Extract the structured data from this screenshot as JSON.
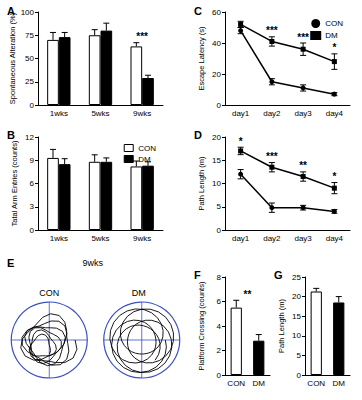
{
  "chart_data": [
    {
      "type": "bar",
      "title": "A",
      "y_label": "Spontaneous Alteration (%)",
      "categories": [
        "1wks",
        "5wks",
        "9wks"
      ],
      "series": [
        {
          "name": "CON",
          "color": "#ffffff",
          "values": [
            70,
            75,
            63
          ],
          "errors": [
            8,
            6,
            4
          ]
        },
        {
          "name": "DM",
          "color": "#000000",
          "values": [
            73,
            80,
            29
          ],
          "errors": [
            5,
            8,
            3
          ]
        }
      ],
      "significance": [
        null,
        null,
        "***"
      ],
      "ylim": [
        0,
        100
      ],
      "yticks": [
        0,
        25,
        50,
        75,
        100
      ],
      "grid": false
    },
    {
      "type": "bar",
      "title": "B",
      "y_label": "Tatal Arm Entries (counts)",
      "categories": [
        "1wks",
        "5wks",
        "9wks"
      ],
      "series": [
        {
          "name": "CON",
          "color": "#ffffff",
          "values": [
            9.3,
            8.8,
            8.2
          ],
          "errors": [
            1.1,
            0.9,
            0.7
          ]
        },
        {
          "name": "DM",
          "color": "#000000",
          "values": [
            8.5,
            8.8,
            8.3
          ],
          "errors": [
            0.7,
            0.5,
            0.5
          ]
        }
      ],
      "ylim": [
        0,
        12
      ],
      "yticks": [
        0,
        3,
        6,
        9,
        12
      ],
      "grid": false,
      "legend": "upper right"
    },
    {
      "type": "line",
      "title": "C",
      "y_label": "Escape Latency (s)",
      "categories": [
        "day1",
        "day2",
        "day3",
        "day4"
      ],
      "series": [
        {
          "name": "CON",
          "color": "#000000",
          "marker": "circle",
          "line_style": "solid",
          "values": [
            48,
            15,
            11,
            7
          ],
          "errors": [
            2,
            2,
            2,
            1
          ]
        },
        {
          "name": "DM",
          "color": "#000000",
          "marker": "square",
          "line_style": "solid",
          "values": [
            52,
            41,
            36,
            28
          ],
          "errors": [
            2,
            3,
            4,
            5
          ]
        }
      ],
      "significance": [
        null,
        "***",
        "***",
        "*"
      ],
      "ylim": [
        0,
        60
      ],
      "yticks": [
        0,
        20,
        40,
        60
      ],
      "grid": false,
      "legend": "upper right"
    },
    {
      "type": "line",
      "title": "D",
      "y_label": "Path Length (m)",
      "categories": [
        "day1",
        "day2",
        "day3",
        "day4"
      ],
      "series": [
        {
          "name": "CON",
          "color": "#000000",
          "marker": "circle",
          "line_style": "solid",
          "values": [
            12,
            4.8,
            4.8,
            4
          ],
          "errors": [
            1,
            1,
            0.5,
            0.4
          ]
        },
        {
          "name": "DM",
          "color": "#000000",
          "marker": "square",
          "line_style": "solid",
          "values": [
            17,
            13.5,
            11.5,
            9
          ],
          "errors": [
            0.8,
            1,
            1,
            1.2
          ]
        }
      ],
      "significance": [
        "*",
        "***",
        "**",
        "*"
      ],
      "ylim": [
        0,
        20
      ],
      "yticks": [
        0,
        5,
        10,
        15,
        20
      ],
      "grid": false
    },
    {
      "type": "trace",
      "title": "E",
      "subtitle": "9wks",
      "labels": [
        "CON",
        "DM"
      ],
      "color": "#3b4fc4"
    },
    {
      "type": "bar",
      "title": "F",
      "y_label": "Platform Crossing (counts)",
      "categories": [
        "CON",
        "DM"
      ],
      "values": [
        5.5,
        2.8
      ],
      "errors": [
        0.6,
        0.5
      ],
      "colors": [
        "#ffffff",
        "#000000"
      ],
      "significance": "**",
      "ylim": [
        0,
        8
      ],
      "yticks": [
        0,
        2,
        4,
        6,
        8
      ],
      "grid": false
    },
    {
      "type": "bar",
      "title": "G",
      "y_label": "Path Length (m)",
      "categories": [
        "CON",
        "DM"
      ],
      "values": [
        21.3,
        18.5
      ],
      "errors": [
        0.8,
        1.5
      ],
      "colors": [
        "#ffffff",
        "#000000"
      ],
      "ylim": [
        0,
        25
      ],
      "yticks": [
        0,
        5,
        10,
        15,
        20,
        25
      ],
      "grid": false
    }
  ]
}
